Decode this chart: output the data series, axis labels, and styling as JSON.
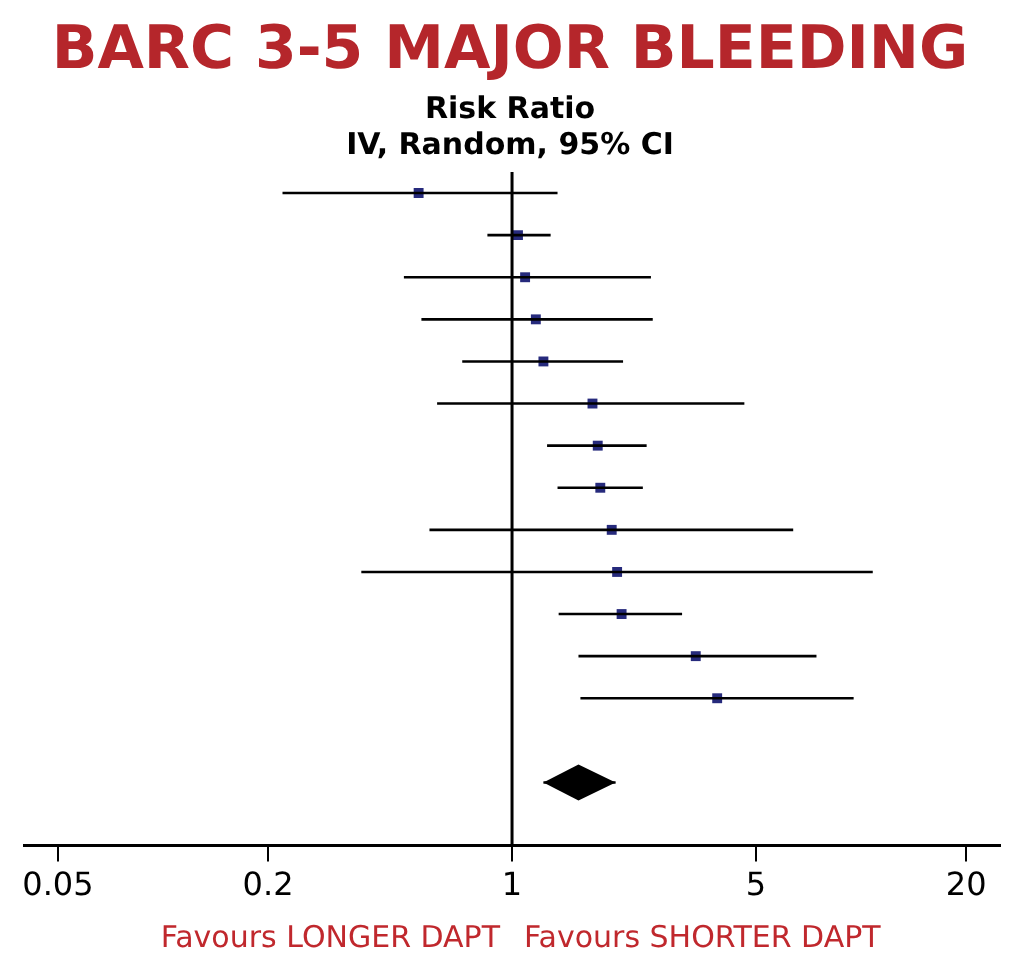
{
  "chart_data": {
    "type": "scatter",
    "title": "BARC 3-5 MAJOR BLEEDING",
    "subtitle": "Risk Ratio\nIV, Random, 95% CI",
    "orientation": "horizontal",
    "log": "x",
    "categories": [
      null,
      null,
      null,
      null,
      null,
      null,
      null,
      null,
      null,
      null,
      null,
      null,
      null,
      null,
      null,
      null
    ],
    "series": [
      {
        "color": "#262a7c",
        "marker": "square",
        "values": [
          0.54,
          1.04,
          1.09,
          1.17,
          1.23,
          1.7,
          1.76,
          1.79,
          1.93,
          2.0,
          2.06,
          3.36,
          3.87,
          null,
          null,
          null
        ],
        "errors": [
          [
            0.22,
            1.35
          ],
          [
            0.85,
            1.29
          ],
          [
            0.49,
            2.5
          ],
          [
            0.55,
            2.53
          ],
          [
            0.72,
            2.08
          ],
          [
            0.61,
            4.63
          ],
          [
            1.26,
            2.43
          ],
          [
            1.35,
            2.37
          ],
          [
            0.58,
            6.39
          ],
          [
            0.37,
            10.8
          ],
          [
            1.36,
            3.07
          ],
          [
            1.55,
            7.45
          ],
          [
            1.57,
            9.52
          ],
          null,
          null,
          null
        ]
      },
      {
        "color": "#000000",
        "marker": "diamond",
        "values": [
          null,
          null,
          null,
          null,
          null,
          null,
          null,
          null,
          null,
          null,
          null,
          null,
          null,
          null,
          1.55,
          null
        ],
        "errors": [
          null,
          null,
          null,
          null,
          null,
          null,
          null,
          null,
          null,
          null,
          null,
          null,
          null,
          null,
          [
            1.23,
            1.98
          ],
          null
        ]
      }
    ],
    "xlim": [
      0.04,
      25
    ],
    "xticks": [
      0.05,
      0.2,
      1,
      5,
      20
    ],
    "grid": false,
    "legend": false,
    "ref_lines": [
      {
        "axis": "x",
        "value": 1,
        "color": "#000000"
      }
    ],
    "annotations": [
      "Favours LONGER DAPT",
      "Favours SHORTER DAPT"
    ]
  }
}
